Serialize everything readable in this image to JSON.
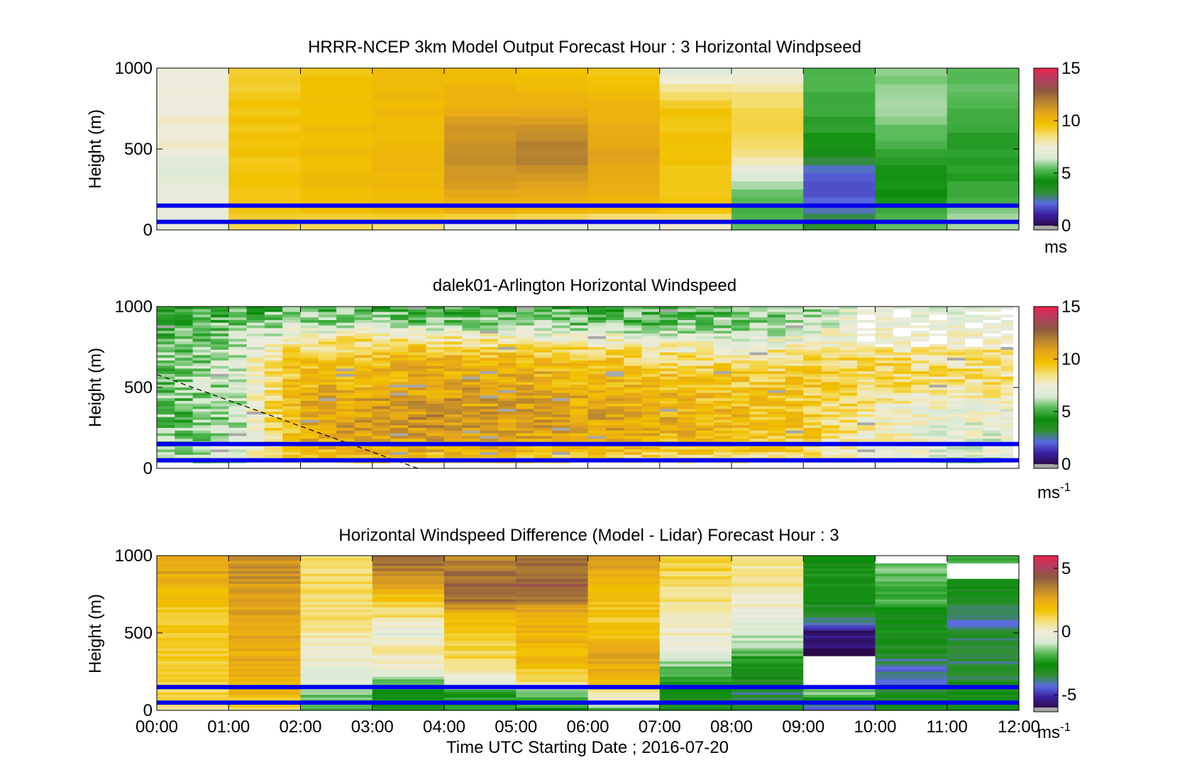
{
  "figure": {
    "xlabel": "Time UTC  Starting Date ; 2016-07-20",
    "xticks": [
      "00:00",
      "01:00",
      "02:00",
      "03:00",
      "04:00",
      "05:00",
      "06:00",
      "07:00",
      "08:00",
      "09:00",
      "10:00",
      "11:00",
      "12:00"
    ]
  },
  "colors": {
    "scale": [
      "#2b0a4a",
      "#3b1fa0",
      "#5a6be0",
      "#2f8f2f",
      "#0b8c0b",
      "#53b853",
      "#d9ead3",
      "#eeecdc",
      "#f5e07a",
      "#f2c200",
      "#e8a818",
      "#b98630",
      "#8e5a40",
      "#b04060",
      "#e8244e"
    ],
    "overlay": "#0000ee",
    "missing": "#ffffff",
    "gray": "#a8a8a8"
  },
  "chart_data": [
    {
      "type": "heatmap",
      "title": "HRRR-NCEP 3km Model Output   Forecast Hour : 3 Horizontal Windpseed",
      "ylabel": "Height (m)",
      "ylim": [
        0,
        1000
      ],
      "yticks": [
        "0",
        "500",
        "1000"
      ],
      "x": [
        "00:00",
        "01:00",
        "02:00",
        "03:00",
        "04:00",
        "05:00",
        "06:00",
        "07:00",
        "08:00",
        "09:00",
        "10:00",
        "11:00"
      ],
      "heights": [
        1000,
        900,
        800,
        700,
        600,
        500,
        400,
        300,
        200,
        100,
        0
      ],
      "values": [
        [
          7.6,
          9.0,
          9.6,
          9.9,
          9.8,
          9.6,
          9.3,
          6.5,
          7.2,
          5.2,
          5.6,
          5.2
        ],
        [
          7.6,
          9.3,
          9.7,
          10.0,
          10.0,
          9.8,
          9.6,
          7.9,
          7.8,
          5.3,
          5.9,
          5.4
        ],
        [
          7.6,
          9.5,
          9.7,
          10.0,
          10.2,
          10.2,
          10.0,
          9.2,
          8.8,
          5.1,
          6.1,
          5.3
        ],
        [
          7.6,
          9.6,
          9.8,
          10.0,
          10.8,
          11.0,
          10.3,
          9.6,
          9.0,
          4.8,
          5.8,
          5.0
        ],
        [
          7.6,
          9.6,
          9.8,
          10.0,
          11.3,
          11.6,
          10.6,
          9.6,
          8.9,
          4.6,
          5.5,
          4.8
        ],
        [
          7.6,
          9.6,
          9.8,
          10.0,
          11.6,
          12.0,
          10.8,
          9.6,
          8.7,
          4.5,
          5.0,
          4.7
        ],
        [
          6.5,
          9.6,
          9.8,
          10.0,
          11.4,
          11.7,
          10.8,
          9.6,
          7.4,
          2.6,
          4.6,
          4.7
        ],
        [
          7.0,
          9.6,
          9.8,
          10.0,
          11.2,
          11.0,
          10.6,
          9.6,
          6.3,
          1.9,
          4.5,
          4.8
        ],
        [
          7.2,
          9.6,
          9.8,
          10.0,
          10.6,
          10.5,
          10.2,
          9.6,
          5.5,
          1.7,
          4.4,
          5.0
        ],
        [
          7.1,
          9.4,
          9.5,
          9.8,
          10.0,
          9.8,
          9.7,
          9.4,
          5.2,
          2.6,
          5.0,
          6.0
        ],
        [
          6.9,
          8.8,
          8.5,
          8.0,
          6.5,
          6.2,
          6.0,
          7.2,
          5.4,
          3.8,
          5.6,
          6.2
        ]
      ],
      "clim": [
        0,
        15
      ],
      "cbar_ticks": [
        "0",
        "5",
        "10",
        "15"
      ],
      "cbar_unit": "ms",
      "overlay_lines_m": [
        150,
        50
      ]
    },
    {
      "type": "heatmap",
      "title": "dalek01-Arlington  Horizontal Windspeed",
      "ylabel": "Height (m)",
      "ylim": [
        0,
        1000
      ],
      "yticks": [
        "0",
        "500",
        "1000"
      ],
      "x_range": [
        "00:00",
        "12:00"
      ],
      "heights": [
        1000,
        900,
        800,
        700,
        600,
        500,
        400,
        300,
        200,
        100,
        0
      ],
      "profile_times": [
        "00:00",
        "00:15",
        "00:30",
        "00:45",
        "01:00",
        "01:15",
        "01:30",
        "01:45",
        "02:00",
        "02:15",
        "02:30",
        "02:45",
        "03:00",
        "03:15",
        "03:30",
        "03:45",
        "04:00",
        "04:15",
        "04:30",
        "04:45",
        "05:00",
        "05:15",
        "05:30",
        "05:45",
        "06:00",
        "06:15",
        "06:30",
        "06:45",
        "07:00",
        "07:15",
        "07:30",
        "07:45",
        "08:00",
        "08:15",
        "08:30",
        "08:45",
        "09:00",
        "09:15",
        "09:30",
        "09:45",
        "10:00",
        "10:15",
        "10:30",
        "10:45",
        "11:00",
        "11:15",
        "11:30",
        "11:45"
      ],
      "profile_anchors": {
        "00:00": [
          4.8,
          4.7,
          5.0,
          5.4,
          5.6,
          5.5,
          5.4,
          5.3,
          5.6,
          5.8,
          6.0
        ],
        "01:00": [
          5.0,
          5.4,
          6.0,
          6.2,
          6.4,
          6.2,
          6.0,
          5.8,
          6.2,
          6.6,
          6.2
        ],
        "02:00": [
          5.2,
          6.2,
          7.8,
          9.4,
          10.0,
          10.2,
          10.4,
          10.6,
          10.4,
          10.0,
          7.0
        ],
        "03:00": [
          5.0,
          6.0,
          8.6,
          9.6,
          10.0,
          10.4,
          10.8,
          11.0,
          11.0,
          10.4,
          8.0
        ],
        "04:00": [
          4.9,
          5.6,
          8.4,
          9.8,
          10.4,
          10.8,
          11.2,
          11.4,
          11.2,
          10.2,
          7.6
        ],
        "05:00": [
          5.1,
          5.8,
          7.8,
          9.6,
          10.2,
          10.6,
          10.8,
          11.0,
          10.8,
          10.0,
          7.4
        ],
        "06:00": [
          5.3,
          5.6,
          7.6,
          9.4,
          10.0,
          10.2,
          10.6,
          10.8,
          10.6,
          9.8,
          7.2
        ],
        "07:00": [
          5.2,
          5.4,
          7.4,
          8.6,
          9.6,
          10.0,
          10.2,
          10.4,
          10.2,
          9.6,
          7.0
        ],
        "08:00": [
          5.2,
          5.6,
          6.8,
          8.2,
          9.2,
          9.6,
          9.8,
          10.0,
          9.8,
          9.4,
          6.8
        ],
        "09:00": [
          6.0,
          6.2,
          7.2,
          8.6,
          9.0,
          9.4,
          9.4,
          9.6,
          9.4,
          8.8,
          6.6
        ],
        "10:00": [
          7.4,
          7.6,
          8.0,
          8.8,
          9.2,
          8.8,
          8.0,
          7.6,
          7.6,
          7.4,
          6.4
        ],
        "11:00": [
          7.2,
          7.4,
          7.8,
          8.4,
          8.6,
          8.4,
          7.4,
          7.0,
          7.0,
          6.8,
          6.2
        ]
      },
      "clim": [
        0,
        15
      ],
      "cbar_ticks": [
        "0",
        "5",
        "10",
        "15"
      ],
      "cbar_unit": "ms",
      "cbar_unit_sup": "-1",
      "overlay_lines_m": [
        150,
        50
      ],
      "dashed_line": {
        "from": [
          "00:00",
          580
        ],
        "to": [
          "03:38",
          0
        ]
      },
      "missing_after": "11:55"
    },
    {
      "type": "heatmap",
      "title": "Horizontal Windspeed Difference (Model - Lidar) Forecast Hour : 3",
      "ylabel": "Height (m)",
      "ylim": [
        0,
        1000
      ],
      "yticks": [
        "0",
        "500",
        "1000"
      ],
      "x": [
        "00:00",
        "01:00",
        "02:00",
        "03:00",
        "04:00",
        "05:00",
        "06:00",
        "07:00",
        "08:00",
        "09:00",
        "10:00",
        "11:00"
      ],
      "heights": [
        1000,
        900,
        800,
        700,
        600,
        500,
        400,
        300,
        200,
        100,
        0
      ],
      "values": [
        [
          3.0,
          3.0,
          1.2,
          4.0,
          3.2,
          3.6,
          2.8,
          1.5,
          0.8,
          -2.5,
          null,
          -2.2
        ],
        [
          2.6,
          3.2,
          1.0,
          3.6,
          3.8,
          4.0,
          2.4,
          1.2,
          0.6,
          -2.8,
          -1.6,
          null
        ],
        [
          2.0,
          3.0,
          0.9,
          2.4,
          4.2,
          4.2,
          2.0,
          1.0,
          0.5,
          -2.4,
          -1.8,
          -2.8
        ],
        [
          1.6,
          2.8,
          0.8,
          1.4,
          3.6,
          3.4,
          1.8,
          0.8,
          0.2,
          -3.0,
          -2.0,
          -3.0
        ],
        [
          1.4,
          2.6,
          0.8,
          0.8,
          2.0,
          2.4,
          1.6,
          0.5,
          -0.3,
          -3.4,
          -2.6,
          -4.2
        ],
        [
          1.4,
          2.4,
          0.6,
          -0.6,
          1.4,
          2.2,
          1.8,
          0.2,
          -0.8,
          -5.6,
          -2.8,
          -3.4
        ],
        [
          1.4,
          2.4,
          0.2,
          0.4,
          1.2,
          2.0,
          2.4,
          -0.4,
          -1.4,
          -5.8,
          -3.0,
          -3.4
        ],
        [
          1.4,
          2.6,
          -0.2,
          0.2,
          1.0,
          1.8,
          2.6,
          -1.4,
          -2.6,
          null,
          -4.0,
          -3.6
        ],
        [
          1.4,
          2.4,
          -0.6,
          -1.2,
          -0.2,
          1.2,
          2.0,
          -2.2,
          -3.2,
          null,
          -4.2,
          -3.4
        ],
        [
          1.2,
          2.0,
          -1.6,
          -2.6,
          -2.2,
          -1.8,
          0.6,
          -2.6,
          -3.6,
          -1.4,
          -3.2,
          -2.6
        ],
        [
          0.8,
          1.0,
          -1.8,
          -2.4,
          -2.4,
          -2.2,
          -2.0,
          -2.8,
          -3.2,
          -5.0,
          -3.0,
          -2.8
        ]
      ],
      "clim": [
        -6,
        6
      ],
      "cbar_ticks": [
        "-5",
        "0",
        "5"
      ],
      "cbar_unit": "ms",
      "cbar_unit_sup": "-1",
      "overlay_lines_m": [
        150,
        50
      ]
    }
  ]
}
